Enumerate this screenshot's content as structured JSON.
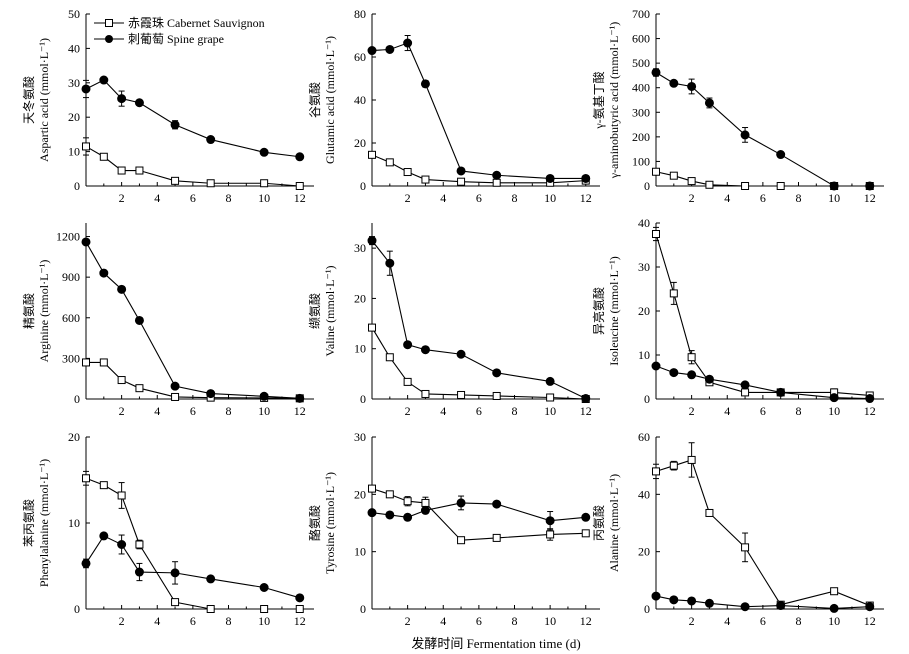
{
  "x_axis_label": "发酵时间 Fermentation time (d)",
  "legend": [
    {
      "label": "赤霞珠 Cabernet Sauvignon",
      "marker": "open-square"
    },
    {
      "label": "刺葡萄 Spine grape",
      "marker": "filled-circle"
    }
  ],
  "chart_data": [
    {
      "type": "line",
      "ylabel_cn": "天冬氨酸",
      "ylabel_en": "Aspartic acid (mmol·L⁻¹)",
      "ylim": [
        0,
        50
      ],
      "yticks": [
        0,
        10,
        20,
        30,
        40,
        50
      ],
      "xticks": [
        2,
        4,
        6,
        8,
        10,
        12
      ],
      "series": [
        {
          "name": "赤霞珠 Cabernet Sauvignon",
          "x": [
            0,
            1,
            2,
            3,
            5,
            7,
            10,
            12
          ],
          "y": [
            11.5,
            8.5,
            4.5,
            4.5,
            1.5,
            0.8,
            0.8,
            0
          ],
          "err": [
            2.5,
            0.8,
            0.5,
            0.4,
            0.3,
            0.2,
            0.2,
            0
          ]
        },
        {
          "name": "刺葡萄 Spine grape",
          "x": [
            0,
            1,
            2,
            3,
            5,
            7,
            10,
            12
          ],
          "y": [
            28.2,
            30.8,
            25.4,
            24.2,
            17.8,
            13.5,
            9.8,
            8.5
          ],
          "err": [
            2.5,
            0.8,
            2.2,
            0.8,
            1.2,
            0.5,
            0.8,
            0.4
          ]
        }
      ]
    },
    {
      "type": "line",
      "ylabel_cn": "谷氨酸",
      "ylabel_en": "Glutamic acid (mmol·L⁻¹)",
      "ylim": [
        0,
        80
      ],
      "yticks": [
        0,
        20,
        40,
        60,
        80
      ],
      "xticks": [
        2,
        4,
        6,
        8,
        10,
        12
      ],
      "series": [
        {
          "name": "赤霞珠 Cabernet Sauvignon",
          "x": [
            0,
            1,
            2,
            3,
            5,
            7,
            10,
            12
          ],
          "y": [
            14.5,
            11,
            6.5,
            3,
            2,
            1.5,
            1.5,
            2.5
          ],
          "err": [
            1.5,
            0.8,
            0.5,
            0.3,
            0.3,
            0.2,
            0.2,
            0.3
          ]
        },
        {
          "name": "刺葡萄 Spine grape",
          "x": [
            0,
            1,
            2,
            3,
            5,
            7,
            10,
            12
          ],
          "y": [
            63,
            63.5,
            66.5,
            47.5,
            7,
            5,
            3.5,
            3.5
          ],
          "err": [
            1,
            1,
            3.5,
            1.5,
            0.5,
            0.5,
            0.5,
            0.5
          ]
        }
      ]
    },
    {
      "type": "line",
      "ylabel_cn": "γ-氨基丁酸",
      "ylabel_en": "γ-aminobutyric acid (mmol·L⁻¹)",
      "ylim": [
        0,
        700
      ],
      "yticks": [
        0,
        100,
        200,
        300,
        400,
        500,
        600,
        700
      ],
      "xticks": [
        2,
        4,
        6,
        8,
        10,
        12
      ],
      "series": [
        {
          "name": "赤霞珠 Cabernet Sauvignon",
          "x": [
            0,
            1,
            2,
            3,
            5,
            7,
            10,
            12
          ],
          "y": [
            58,
            42,
            20,
            5,
            0,
            0,
            0,
            0
          ],
          "err": [
            10,
            8,
            10,
            5,
            0,
            0,
            0,
            0
          ]
        },
        {
          "name": "刺葡萄 Spine grape",
          "x": [
            0,
            1,
            2,
            3,
            5,
            7,
            10,
            12
          ],
          "y": [
            462,
            418,
            405,
            338,
            208,
            128,
            0,
            0
          ],
          "err": [
            15,
            10,
            30,
            20,
            30,
            8,
            0,
            0
          ]
        }
      ]
    },
    {
      "type": "line",
      "ylabel_cn": "精氨酸",
      "ylabel_en": "Arginine (mmol·L⁻¹)",
      "ylim": [
        0,
        1300
      ],
      "yticks": [
        0,
        300,
        600,
        900,
        1200
      ],
      "xticks": [
        2,
        4,
        6,
        8,
        10,
        12
      ],
      "series": [
        {
          "name": "赤霞珠 Cabernet Sauvignon",
          "x": [
            0,
            1,
            2,
            3,
            5,
            7,
            10,
            12
          ],
          "y": [
            270,
            270,
            140,
            80,
            15,
            10,
            8,
            5
          ],
          "err": [
            20,
            20,
            15,
            10,
            5,
            3,
            3,
            3
          ]
        },
        {
          "name": "刺葡萄 Spine grape",
          "x": [
            0,
            1,
            2,
            3,
            5,
            7,
            10,
            12
          ],
          "y": [
            1160,
            930,
            810,
            580,
            95,
            40,
            20,
            5
          ],
          "err": [
            20,
            20,
            15,
            15,
            10,
            10,
            5,
            3
          ]
        }
      ]
    },
    {
      "type": "line",
      "ylabel_cn": "缬氨酸",
      "ylabel_en": "Valine (mmol·L⁻¹)",
      "ylim": [
        0,
        35
      ],
      "yticks": [
        0,
        10,
        20,
        30
      ],
      "xticks": [
        2,
        4,
        6,
        8,
        10,
        12
      ],
      "series": [
        {
          "name": "赤霞珠 Cabernet Sauvignon",
          "x": [
            0,
            1,
            2,
            3,
            5,
            7,
            10,
            12
          ],
          "y": [
            14.2,
            8.3,
            3.4,
            1.0,
            0.8,
            0.6,
            0.3,
            0
          ],
          "err": [
            0.6,
            0.5,
            0.4,
            0.3,
            0.2,
            0.2,
            0.2,
            0
          ]
        },
        {
          "name": "刺葡萄 Spine grape",
          "x": [
            0,
            1,
            2,
            3,
            5,
            7,
            10,
            12
          ],
          "y": [
            31.5,
            27,
            10.8,
            9.8,
            8.9,
            5.2,
            3.5,
            0.1
          ],
          "err": [
            0.8,
            2.4,
            0.4,
            0.3,
            0.4,
            0.3,
            0.3,
            0.1
          ]
        }
      ]
    },
    {
      "type": "line",
      "ylabel_cn": "异亮氨酸",
      "ylabel_en": "Isoleucine (mmol·L⁻¹)",
      "ylim": [
        0,
        40
      ],
      "yticks": [
        0,
        10,
        20,
        30,
        40
      ],
      "xticks": [
        2,
        4,
        6,
        8,
        10,
        12
      ],
      "series": [
        {
          "name": "赤霞珠 Cabernet Sauvignon",
          "x": [
            0,
            1,
            2,
            3,
            5,
            7,
            10,
            12
          ],
          "y": [
            37.5,
            24,
            9.5,
            3.8,
            1.5,
            1.5,
            1.5,
            0.8
          ],
          "err": [
            1.5,
            2.5,
            1.5,
            0.5,
            0.3,
            0.3,
            0.8,
            0.4
          ]
        },
        {
          "name": "刺葡萄 Spine grape",
          "x": [
            0,
            1,
            2,
            3,
            5,
            7,
            10,
            12
          ],
          "y": [
            7.5,
            6,
            5.5,
            4.5,
            3.2,
            1.5,
            0.3,
            0.1
          ],
          "err": [
            0.5,
            0.4,
            0.4,
            0.4,
            0.3,
            0.2,
            0.2,
            0.1
          ]
        }
      ]
    },
    {
      "type": "line",
      "ylabel_cn": "苯丙氨酸",
      "ylabel_en": "Phenylalanine (mmol·L⁻¹)",
      "ylim": [
        0,
        20
      ],
      "yticks": [
        0,
        10,
        20
      ],
      "xticks": [
        2,
        4,
        6,
        8,
        10,
        12
      ],
      "series": [
        {
          "name": "赤霞珠 Cabernet Sauvignon",
          "x": [
            0,
            1,
            2,
            3,
            5,
            7,
            10,
            12
          ],
          "y": [
            15.2,
            14.4,
            13.2,
            7.5,
            0.8,
            0,
            0,
            0
          ],
          "err": [
            0.8,
            0.3,
            1.5,
            0.5,
            0.2,
            0,
            0,
            0
          ]
        },
        {
          "name": "刺葡萄 Spine grape",
          "x": [
            0,
            1,
            2,
            3,
            5,
            7,
            10,
            12
          ],
          "y": [
            5.3,
            8.5,
            7.5,
            4.3,
            4.2,
            3.5,
            2.5,
            1.3
          ],
          "err": [
            0.5,
            0.3,
            1.1,
            1.0,
            1.3,
            0.3,
            0.3,
            0.2
          ]
        }
      ]
    },
    {
      "type": "line",
      "ylabel_cn": "酪氨酸",
      "ylabel_en": "Tyrosine (mmol·L⁻¹)",
      "ylim": [
        0,
        30
      ],
      "yticks": [
        0,
        10,
        20,
        30
      ],
      "xticks": [
        2,
        4,
        6,
        8,
        10,
        12
      ],
      "series": [
        {
          "name": "赤霞珠 Cabernet Sauvignon",
          "x": [
            0,
            1,
            2,
            3,
            5,
            7,
            10,
            12
          ],
          "y": [
            21,
            20,
            18.8,
            18.5,
            12,
            12.4,
            13,
            13.2
          ],
          "err": [
            0.5,
            0.5,
            0.8,
            1.0,
            0.3,
            0.3,
            1.0,
            0.5
          ]
        },
        {
          "name": "刺葡萄 Spine grape",
          "x": [
            0,
            1,
            2,
            3,
            5,
            7,
            10,
            12
          ],
          "y": [
            16.8,
            16.4,
            16,
            17.2,
            18.5,
            18.3,
            15.4,
            16
          ],
          "err": [
            0.5,
            0.5,
            0.5,
            0.5,
            1.2,
            0.4,
            1.6,
            0.4
          ]
        }
      ]
    },
    {
      "type": "line",
      "ylabel_cn": "丙氨酸",
      "ylabel_en": "Alanine (mmol·L⁻¹)",
      "ylim": [
        0,
        60
      ],
      "yticks": [
        0,
        20,
        40,
        60
      ],
      "xticks": [
        2,
        4,
        6,
        8,
        10,
        12
      ],
      "series": [
        {
          "name": "赤霞珠 Cabernet Sauvignon",
          "x": [
            0,
            1,
            2,
            3,
            5,
            7,
            10,
            12
          ],
          "y": [
            48,
            50,
            52,
            33.5,
            21.5,
            1.5,
            6.2,
            1.2
          ],
          "err": [
            2.5,
            1.5,
            6,
            0.8,
            5,
            0.5,
            0.8,
            0.5
          ]
        },
        {
          "name": "刺葡萄 Spine grape",
          "x": [
            0,
            1,
            2,
            3,
            5,
            7,
            10,
            12
          ],
          "y": [
            4.5,
            3.2,
            2.8,
            2,
            0.8,
            1.2,
            0.2,
            0.8
          ],
          "err": [
            0.5,
            0.5,
            0.5,
            0.3,
            0.2,
            0.2,
            0.1,
            0.2
          ]
        }
      ]
    }
  ]
}
